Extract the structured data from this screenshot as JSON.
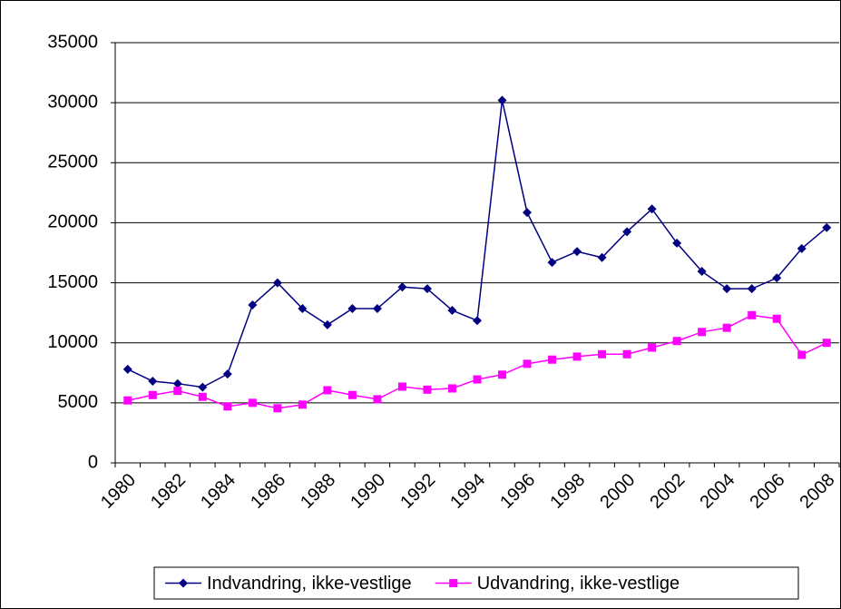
{
  "chart_data": {
    "type": "line",
    "categories": [
      "1980",
      null,
      "1982",
      null,
      "1984",
      null,
      "1986",
      null,
      "1988",
      null,
      "1990",
      null,
      "1992",
      null,
      "1994",
      null,
      "1996",
      null,
      "1998",
      null,
      "2000",
      null,
      "2002",
      null,
      "2004",
      null,
      "2006",
      null,
      "2008"
    ],
    "series": [
      {
        "name": "Indvandring, ikke-vestlige",
        "color": "#000080",
        "marker": "diamond",
        "values": [
          7800,
          6800,
          6600,
          6300,
          7400,
          13150,
          15000,
          12850,
          11500,
          12850,
          12850,
          14650,
          14500,
          12700,
          11850,
          30200,
          20850,
          16700,
          17600,
          17100,
          19250,
          21150,
          18300,
          15950,
          14500,
          14500,
          15400,
          17850,
          19600
        ]
      },
      {
        "name": "Udvandring, ikke-vestlige",
        "color": "#ff00ff",
        "marker": "square",
        "values": [
          5200,
          5650,
          6000,
          5500,
          4700,
          5000,
          4550,
          4850,
          6050,
          5650,
          5300,
          6350,
          6100,
          6200,
          6950,
          7350,
          8250,
          8600,
          8850,
          9050,
          9050,
          9600,
          10150,
          10900,
          11250,
          12300,
          12000,
          9000,
          10000
        ]
      }
    ],
    "ylim": [
      0,
      35000
    ],
    "yticks": [
      0,
      5000,
      10000,
      15000,
      20000,
      25000,
      30000,
      35000
    ],
    "grid": true,
    "legend": "bottom"
  }
}
